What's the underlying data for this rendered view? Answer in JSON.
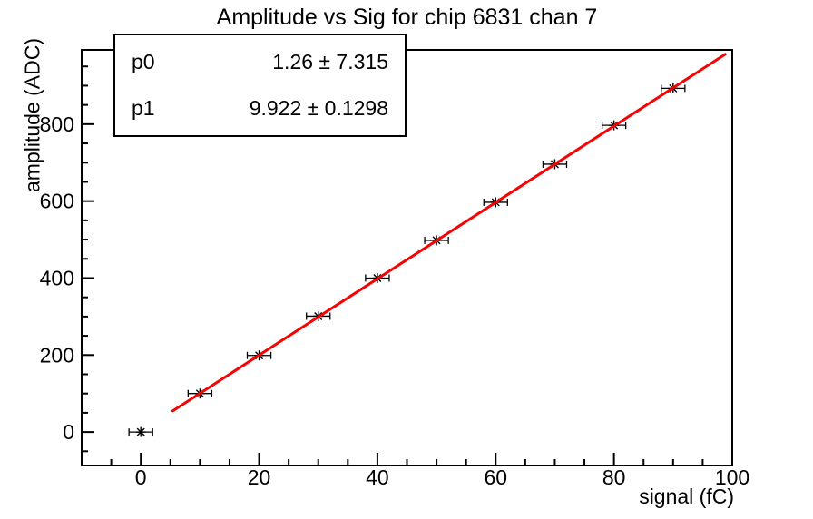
{
  "stats": {
    "rows": [
      {
        "name": "p0",
        "value": "1.26 ± 7.315"
      },
      {
        "name": "p1",
        "value": "9.922 ± 0.1298"
      }
    ]
  },
  "chart_data": {
    "type": "scatter",
    "title": "Amplitude vs Sig for chip 6831 chan 7",
    "xlabel": "signal (fC)",
    "ylabel": "amplitude (ADC)",
    "xlim": [
      -10,
      100
    ],
    "ylim": [
      -87,
      993
    ],
    "x_major_ticks": [
      0,
      20,
      40,
      60,
      80,
      100
    ],
    "x_minor_step": 5,
    "y_major_ticks": [
      0,
      200,
      400,
      600,
      800
    ],
    "y_minor_step": 50,
    "grid": false,
    "legend": false,
    "marker_style": "asterisk",
    "x": [
      0,
      10,
      20,
      30,
      40,
      50,
      60,
      70,
      80,
      90
    ],
    "y": [
      0,
      100,
      199,
      301,
      400,
      498,
      597,
      696,
      797,
      893
    ],
    "x_error": 2,
    "fit": {
      "p0": 1.26,
      "p1": 9.922,
      "x_start": 5.4,
      "x_end": 98.8
    },
    "colors": {
      "marker": "#000000",
      "fit_line": "#f40404",
      "axis": "#000000"
    }
  }
}
